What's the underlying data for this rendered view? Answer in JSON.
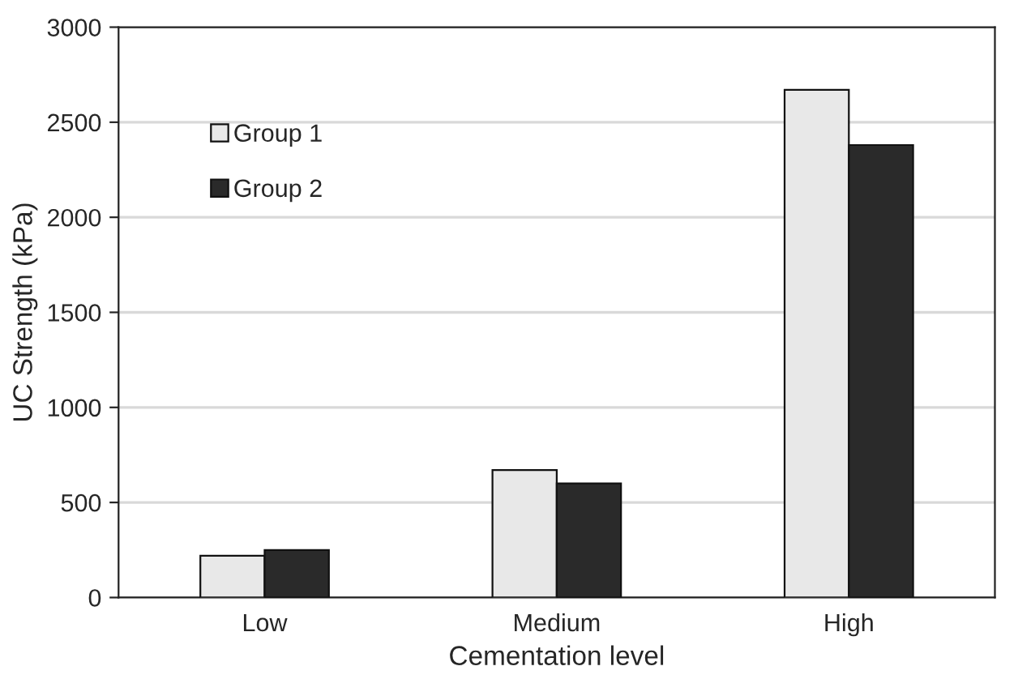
{
  "chart_data": {
    "type": "bar",
    "xlabel": "Cementation level",
    "ylabel": "UC Strength (kPa)",
    "categories": [
      "Low",
      "Medium",
      "High"
    ],
    "series": [
      {
        "name": "Group 1",
        "color": "#e8e8e8",
        "values": [
          220,
          670,
          2670
        ]
      },
      {
        "name": "Group 2",
        "color": "#2a2a2a",
        "values": [
          250,
          600,
          2380
        ]
      }
    ],
    "ylim": [
      0,
      3000
    ],
    "yticks": [
      0,
      500,
      1000,
      1500,
      2000,
      2500,
      3000
    ],
    "grid": "y",
    "legend": "top left"
  }
}
